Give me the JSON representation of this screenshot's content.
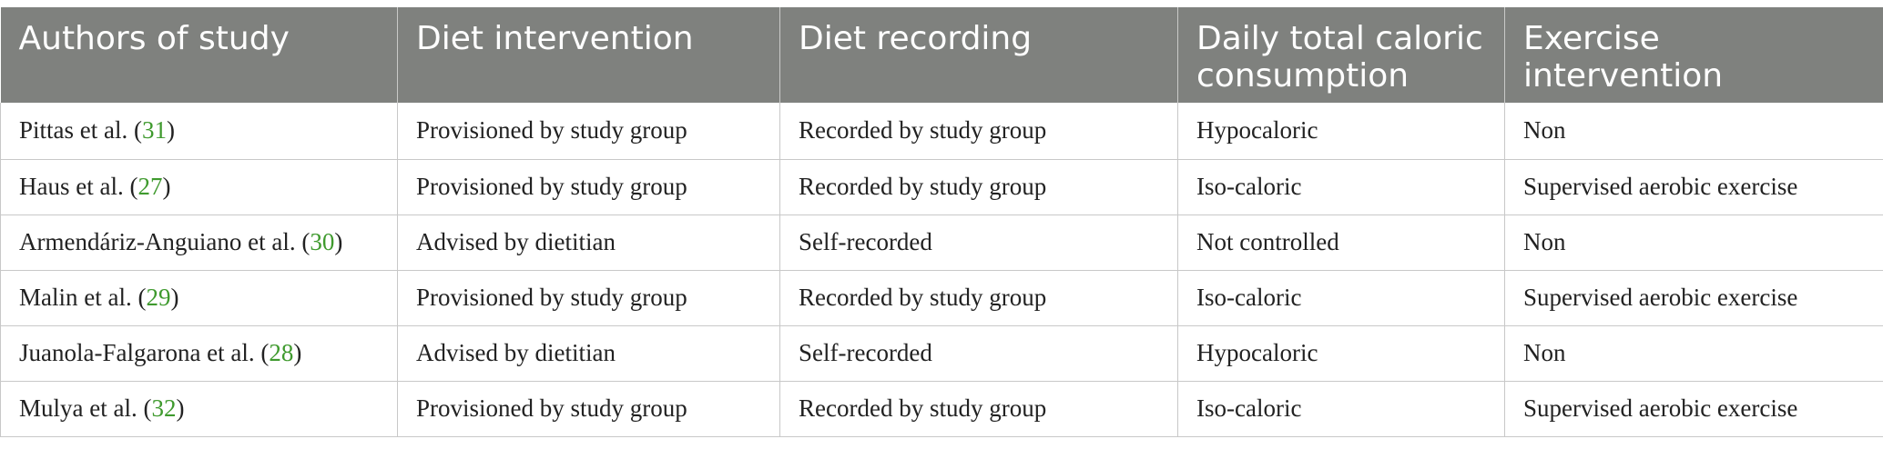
{
  "table": {
    "headers": [
      "Authors of study",
      "Diet intervention",
      "Diet recording",
      "Daily total caloric consumption",
      "Exercise intervention"
    ],
    "rows": [
      {
        "author": "Pittas et al.",
        "ref": "31",
        "diet_intervention": "Provisioned by study group",
        "diet_recording": "Recorded by study group",
        "caloric": "Hypocaloric",
        "exercise": "Non"
      },
      {
        "author": "Haus et al.",
        "ref": "27",
        "diet_intervention": "Provisioned by study group",
        "diet_recording": "Recorded by study group",
        "caloric": "Iso-caloric",
        "exercise": "Supervised aerobic exercise"
      },
      {
        "author": "Armendáriz-Anguiano et al.",
        "ref": "30",
        "diet_intervention": "Advised by dietitian",
        "diet_recording": "Self-recorded",
        "caloric": "Not controlled",
        "exercise": "Non"
      },
      {
        "author": "Malin et al.",
        "ref": "29",
        "diet_intervention": "Provisioned by study group",
        "diet_recording": "Recorded by study group",
        "caloric": "Iso-caloric",
        "exercise": "Supervised aerobic exercise"
      },
      {
        "author": "Juanola-Falgarona et al.",
        "ref": "28",
        "diet_intervention": "Advised by dietitian",
        "diet_recording": "Self-recorded",
        "caloric": "Hypocaloric",
        "exercise": "Non"
      },
      {
        "author": "Mulya et al.",
        "ref": "32",
        "diet_intervention": "Provisioned by study group",
        "diet_recording": "Recorded by study group",
        "caloric": "Iso-caloric",
        "exercise": "Supervised aerobic exercise"
      }
    ]
  },
  "colors": {
    "header_bg": "#7f817e",
    "header_text": "#ffffff",
    "reference_link": "#3f9a2e",
    "grid_line": "#c8c8c8"
  }
}
